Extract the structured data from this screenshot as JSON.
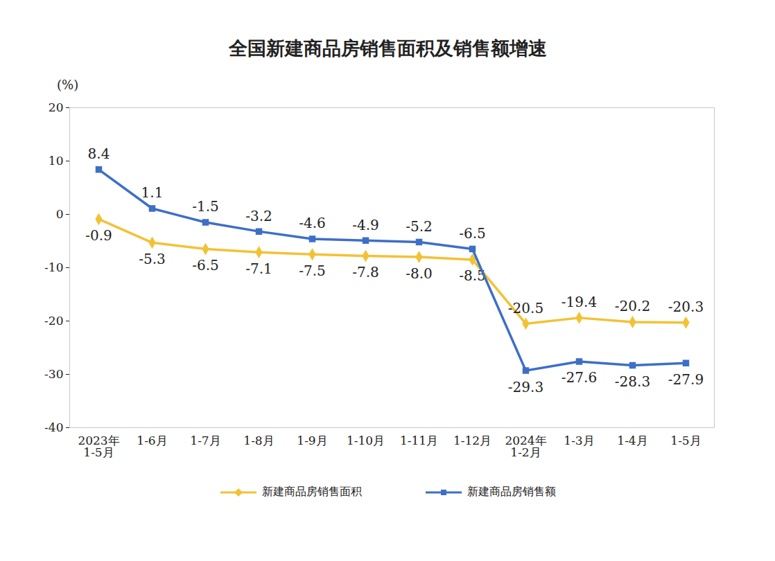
{
  "chart_data": {
    "type": "line",
    "title": "全国新建商品房销售面积及销售额增速",
    "y_label": "(%)",
    "categories": [
      "2023年\n1-5月",
      "1-6月",
      "1-7月",
      "1-8月",
      "1-9月",
      "1-10月",
      "1-11月",
      "1-12月",
      "2024年\n1-2月",
      "1-3月",
      "1-4月",
      "1-5月"
    ],
    "series": [
      {
        "name": "新建商品房销售面积",
        "color": "#f2c236",
        "marker": "diamond",
        "values": [
          -0.9,
          -5.3,
          -6.5,
          -7.1,
          -7.5,
          -7.8,
          -8.0,
          -8.5,
          -20.5,
          -19.4,
          -20.2,
          -20.3
        ],
        "value_labels": [
          "-0.9",
          "-5.3",
          "-6.5",
          "-7.1",
          "-7.5",
          "-7.8",
          "-8.0",
          "-8.5",
          "-20.5",
          "-19.4",
          "-20.2",
          "-20.3"
        ]
      },
      {
        "name": "新建商品房销售额",
        "color": "#3d6fc6",
        "marker": "square",
        "values": [
          8.4,
          1.1,
          -1.5,
          -3.2,
          -4.6,
          -4.9,
          -5.2,
          -6.5,
          -29.3,
          -27.6,
          -28.3,
          -27.9
        ],
        "value_labels": [
          "8.4",
          "1.1",
          "-1.5",
          "-3.2",
          "-4.6",
          "-4.9",
          "-5.2",
          "-6.5",
          "-29.3",
          "-27.6",
          "-28.3",
          "-27.9"
        ]
      }
    ],
    "ylim": [
      -40,
      20
    ],
    "yticks": [
      -40,
      -30,
      -20,
      -10,
      0,
      10,
      20
    ],
    "grid": false,
    "data_labels": true,
    "legend": "bottom"
  }
}
